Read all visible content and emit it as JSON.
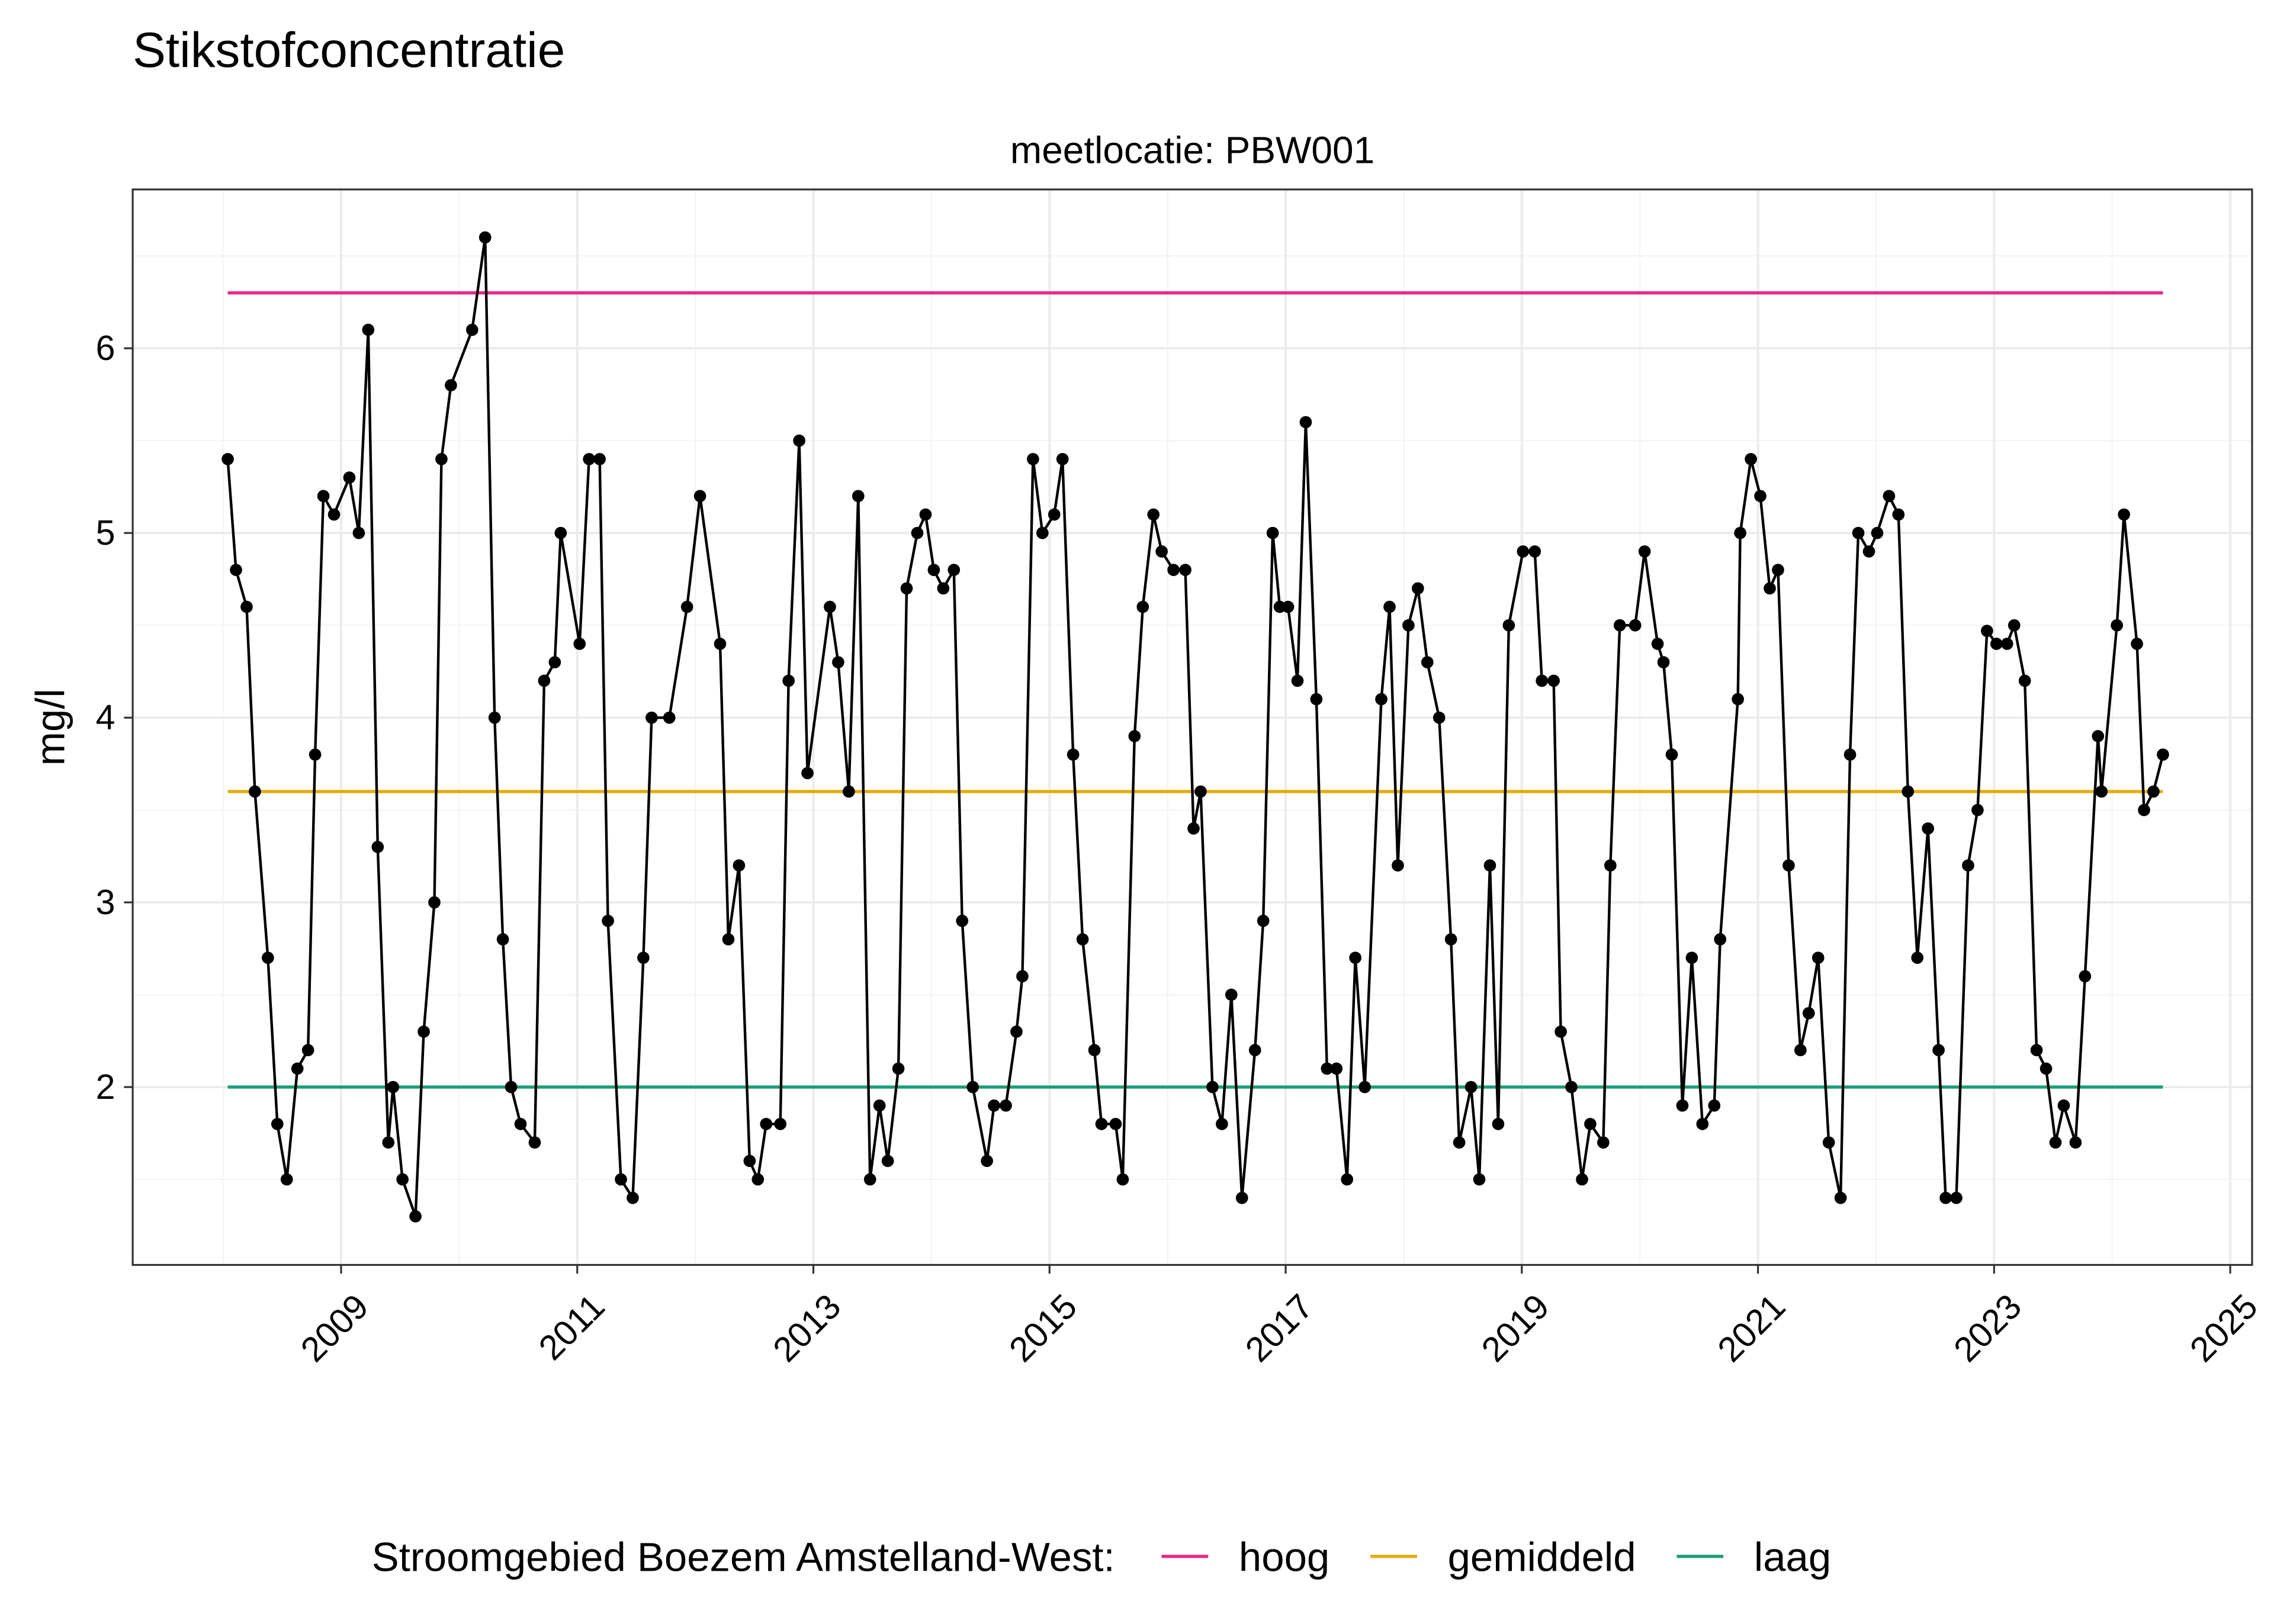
{
  "chart_data": {
    "type": "line",
    "title": "Stikstofconcentratie",
    "subtitle": "meetlocatie: PBW001",
    "ylabel": "mg/l",
    "xlim": [
      2007.235,
      2025.185
    ],
    "xticks": [
      2009,
      2011,
      2013,
      2015,
      2017,
      2019,
      2021,
      2023,
      2025
    ],
    "ylim": [
      1.037,
      6.86
    ],
    "yticks": [
      2,
      3,
      4,
      5,
      6
    ],
    "grid": true,
    "legend_title": "Stroomgebied Boezem Amstelland-West:",
    "legend": "bottom",
    "x": [
      2008.04,
      2008.11,
      2008.2,
      2008.27,
      2008.38,
      2008.46,
      2008.54,
      2008.63,
      2008.72,
      2008.78,
      2008.85,
      2008.94,
      2009.07,
      2009.15,
      2009.23,
      2009.31,
      2009.4,
      2009.44,
      2009.52,
      2009.63,
      2009.7,
      2009.79,
      2009.85,
      2009.93,
      2010.11,
      2010.22,
      2010.3,
      2010.37,
      2010.44,
      2010.52,
      2010.64,
      2010.72,
      2010.81,
      2010.86,
      2011.02,
      2011.1,
      2011.19,
      2011.26,
      2011.37,
      2011.47,
      2011.56,
      2011.63,
      2011.78,
      2011.93,
      2012.04,
      2012.21,
      2012.28,
      2012.37,
      2012.46,
      2012.53,
      2012.6,
      2012.72,
      2012.79,
      2012.88,
      2012.95,
      2013.14,
      2013.21,
      2013.3,
      2013.38,
      2013.48,
      2013.56,
      2013.63,
      2013.72,
      2013.79,
      2013.88,
      2013.95,
      2014.02,
      2014.1,
      2014.19,
      2014.26,
      2014.35,
      2014.47,
      2014.53,
      2014.63,
      2014.72,
      2014.77,
      2014.86,
      2014.94,
      2015.04,
      2015.11,
      2015.2,
      2015.28,
      2015.38,
      2015.44,
      2015.56,
      2015.62,
      2015.72,
      2015.79,
      2015.88,
      2015.95,
      2016.05,
      2016.15,
      2016.22,
      2016.28,
      2016.38,
      2016.46,
      2016.54,
      2016.63,
      2016.74,
      2016.81,
      2016.89,
      2016.95,
      2017.02,
      2017.1,
      2017.17,
      2017.26,
      2017.35,
      2017.43,
      2017.52,
      2017.59,
      2017.67,
      2017.81,
      2017.88,
      2017.95,
      2018.04,
      2018.12,
      2018.2,
      2018.3,
      2018.4,
      2018.47,
      2018.57,
      2018.64,
      2018.73,
      2018.8,
      2018.89,
      2019.01,
      2019.11,
      2019.17,
      2019.27,
      2019.33,
      2019.42,
      2019.51,
      2019.58,
      2019.69,
      2019.75,
      2019.83,
      2019.96,
      2020.04,
      2020.15,
      2020.2,
      2020.27,
      2020.36,
      2020.44,
      2020.53,
      2020.63,
      2020.68,
      2020.83,
      2020.85,
      2020.94,
      2021.02,
      2021.1,
      2021.17,
      2021.26,
      2021.36,
      2021.43,
      2021.51,
      2021.6,
      2021.7,
      2021.78,
      2021.85,
      2021.94,
      2022.01,
      2022.11,
      2022.19,
      2022.27,
      2022.35,
      2022.44,
      2022.53,
      2022.59,
      2022.68,
      2022.78,
      2022.86,
      2022.94,
      2023.02,
      2023.11,
      2023.17,
      2023.26,
      2023.36,
      2023.44,
      2023.52,
      2023.59,
      2023.69,
      2023.77,
      2023.88,
      2023.91,
      2024.04,
      2024.1,
      2024.21,
      2024.27,
      2024.35,
      2024.43
    ],
    "series": [
      {
        "color": "#000000",
        "values": [
          5.4,
          4.8,
          4.6,
          3.6,
          2.7,
          1.8,
          1.5,
          2.1,
          2.2,
          3.8,
          5.2,
          5.1,
          5.3,
          5.0,
          6.1,
          3.3,
          1.7,
          2.0,
          1.5,
          1.3,
          2.3,
          3.0,
          5.4,
          5.8,
          6.1,
          6.6,
          4.0,
          2.8,
          2.0,
          1.8,
          1.7,
          4.2,
          4.3,
          5.0,
          4.4,
          5.4,
          5.4,
          2.9,
          1.5,
          1.4,
          2.7,
          4.0,
          4.0,
          4.6,
          5.2,
          4.4,
          2.8,
          3.2,
          1.6,
          1.5,
          1.8,
          1.8,
          4.2,
          5.5,
          3.7,
          4.6,
          4.3,
          3.6,
          5.2,
          1.5,
          1.9,
          1.6,
          2.1,
          4.7,
          5.0,
          5.1,
          4.8,
          4.7,
          4.8,
          2.9,
          2.0,
          1.6,
          1.9,
          1.9,
          2.3,
          2.6,
          5.4,
          5.0,
          5.1,
          5.4,
          3.8,
          2.8,
          2.2,
          1.8,
          1.8,
          1.5,
          3.9,
          4.6,
          5.1,
          4.9,
          4.8,
          4.8,
          3.4,
          3.6,
          2.0,
          1.8,
          2.5,
          1.4,
          2.2,
          2.9,
          5.0,
          4.6,
          4.6,
          4.2,
          5.6,
          4.1,
          2.1,
          2.1,
          1.5,
          2.7,
          2.0,
          4.1,
          4.6,
          3.2,
          4.5,
          4.7,
          4.3,
          4.0,
          2.8,
          1.7,
          2.0,
          1.5,
          3.2,
          1.8,
          4.5,
          4.9,
          4.9,
          4.2,
          4.2,
          2.3,
          2.0,
          1.5,
          1.8,
          1.7,
          3.2,
          4.5,
          4.5,
          4.9,
          4.4,
          4.3,
          3.8,
          1.9,
          2.7,
          1.8,
          1.9,
          2.8,
          4.1,
          5.0,
          5.4,
          5.2,
          4.7,
          4.8,
          3.2,
          2.2,
          2.4,
          2.7,
          1.7,
          1.4,
          3.8,
          5.0,
          4.9,
          5.0,
          5.2,
          5.1,
          3.6,
          2.7,
          3.4,
          2.2,
          1.4,
          1.4,
          3.2,
          3.5,
          4.47,
          4.4,
          4.4,
          4.5,
          4.2,
          2.2,
          2.1,
          1.7,
          1.9,
          1.7,
          2.6,
          3.9,
          3.6,
          4.5,
          5.1,
          4.4,
          3.5,
          3.6,
          3.8
        ]
      }
    ],
    "reference_lines": [
      {
        "name": "hoog",
        "color": "#e7298a",
        "value": 6.3
      },
      {
        "name": "gemiddeld",
        "color": "#e6ab02",
        "value": 3.6
      },
      {
        "name": "laag",
        "color": "#1b9e77",
        "value": 2.0
      }
    ]
  }
}
